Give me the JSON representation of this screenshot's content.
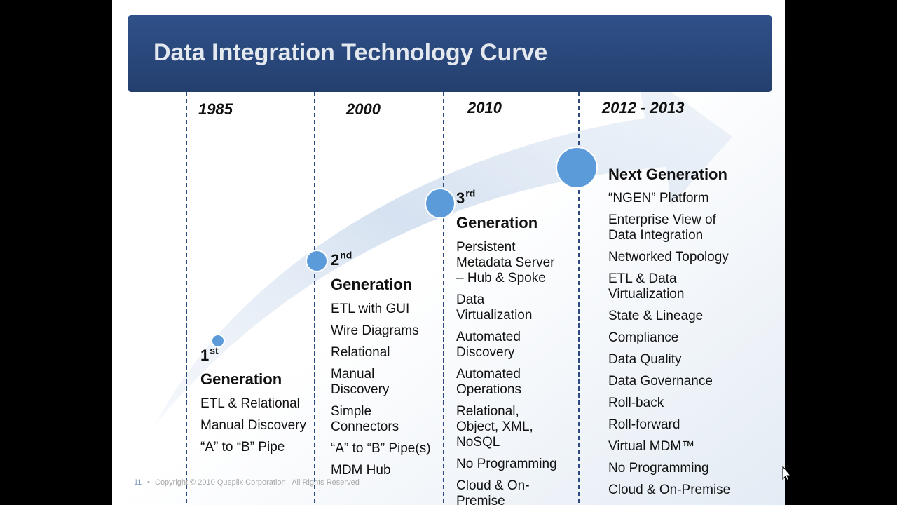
{
  "header": {
    "title": "Data Integration Technology Curve"
  },
  "columns": [
    {
      "year": "1985",
      "ordinal": "1",
      "suffix": "st",
      "heading": "Generation",
      "items": [
        [
          "ETL & Relational"
        ],
        [
          "Manual Discovery"
        ],
        [
          "“A” to “B” Pipe"
        ]
      ]
    },
    {
      "year": "2000",
      "ordinal": "2",
      "suffix": "nd",
      "heading": "Generation",
      "items": [
        [
          "ETL with GUI"
        ],
        [
          "Wire Diagrams"
        ],
        [
          "Relational"
        ],
        [
          "Manual",
          "Discovery"
        ],
        [
          "Simple",
          "Connectors"
        ],
        [
          "“A” to “B” Pipe(s)"
        ],
        [
          "MDM Hub"
        ]
      ]
    },
    {
      "year": "2010",
      "ordinal": "3",
      "suffix": "rd",
      "heading": "Generation",
      "items": [
        [
          "Persistent",
          "Metadata Server",
          "– Hub & Spoke"
        ],
        [
          "Data",
          "Virtualization"
        ],
        [
          "Automated",
          "Discovery"
        ],
        [
          "Automated",
          "Operations"
        ],
        [
          "Relational,",
          "Object, XML,",
          "NoSQL"
        ],
        [
          "No Programming"
        ],
        [
          "Cloud & On-",
          "Premise"
        ]
      ]
    },
    {
      "year": "2012 - 2013",
      "heading": "Next Generation",
      "items": [
        [
          "“NGEN” Platform"
        ],
        [
          "Enterprise View of",
          "Data Integration"
        ],
        [
          "Networked Topology"
        ],
        [
          "ETL & Data",
          "Virtualization"
        ],
        [
          "State & Lineage"
        ],
        [
          "Compliance"
        ],
        [
          "Data Quality"
        ],
        [
          "Data Governance"
        ],
        [
          "Roll-back"
        ],
        [
          "Roll-forward"
        ],
        [
          "Virtual MDM™"
        ],
        [
          "No Programming"
        ],
        [
          "Cloud & On-Premise"
        ]
      ]
    }
  ],
  "footer": {
    "page": "11",
    "copyright": "Copyright © 2010 Queplix Corporation   All Rights Reserved"
  }
}
